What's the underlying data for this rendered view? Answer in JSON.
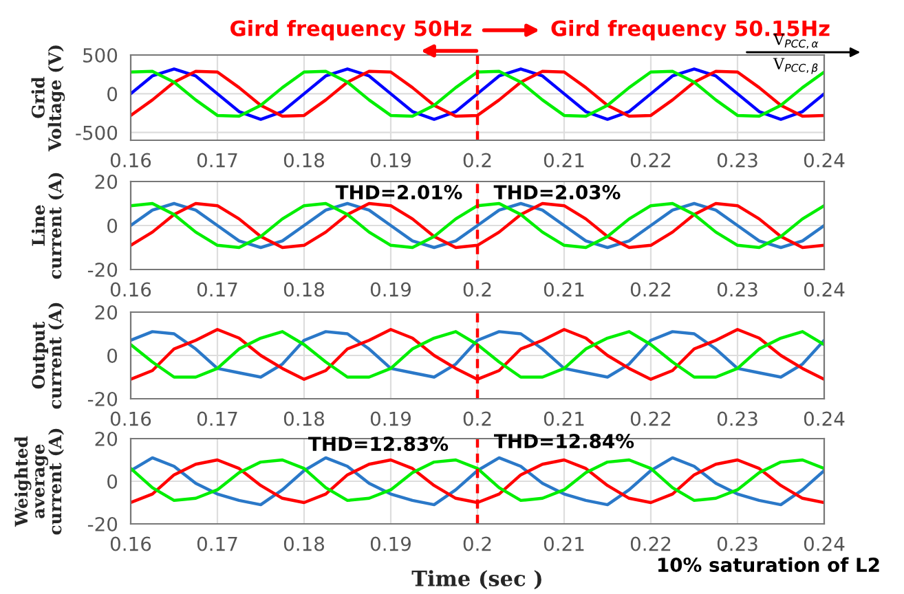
{
  "chart_data": [
    {
      "type": "line",
      "ylabel": "Grid\nVoltage (V)",
      "xlim": [
        0.16,
        0.24
      ],
      "xticks": [
        0.16,
        0.17,
        0.18,
        0.19,
        0.2,
        0.21,
        0.22,
        0.23,
        0.24
      ],
      "ylim": [
        -600,
        500
      ],
      "yticks": [
        -500,
        0,
        500
      ],
      "grid": true,
      "x": [
        0.16,
        0.1625,
        0.165,
        0.1675,
        0.17,
        0.1725,
        0.175,
        0.1775,
        0.18,
        0.1825,
        0.185,
        0.1875,
        0.19,
        0.1925,
        0.195,
        0.1975,
        0.2,
        0.2025,
        0.205,
        0.2075,
        0.21,
        0.2125,
        0.215,
        0.2175,
        0.22,
        0.2225,
        0.225,
        0.2275,
        0.23,
        0.2325,
        0.235,
        0.2375,
        0.24
      ],
      "series": [
        {
          "color": "#0000ff",
          "values": [
            0,
            230,
            320,
            230,
            0,
            -230,
            -330,
            -230,
            0,
            230,
            320,
            230,
            0,
            -230,
            -330,
            -230,
            0,
            230,
            320,
            230,
            0,
            -230,
            -330,
            -230,
            0,
            230,
            320,
            230,
            0,
            -230,
            -330,
            -230,
            0
          ]
        },
        {
          "color": "#ff0000",
          "values": [
            -280,
            -80,
            150,
            290,
            280,
            80,
            -150,
            -290,
            -280,
            -80,
            150,
            290,
            280,
            80,
            -150,
            -290,
            -280,
            -80,
            150,
            290,
            280,
            80,
            -150,
            -290,
            -280,
            -80,
            150,
            290,
            280,
            80,
            -150,
            -290,
            -280
          ]
        },
        {
          "color": "#00ee00",
          "values": [
            280,
            290,
            150,
            -80,
            -280,
            -290,
            -150,
            80,
            280,
            290,
            150,
            -80,
            -280,
            -290,
            -150,
            80,
            280,
            290,
            150,
            -80,
            -280,
            -290,
            -150,
            80,
            280,
            290,
            150,
            -80,
            -280,
            -290,
            -150,
            80,
            280
          ]
        }
      ],
      "ref_lines": [
        {
          "axis": "x",
          "value": 0.2,
          "color": "#ff0000",
          "line_style": "dashed"
        }
      ],
      "annotations": [
        "Gird frequency 50Hz",
        "Gird frequency 50.15Hz",
        "V$_{PCC,α}$",
        "V$_{PCC,β}$"
      ]
    },
    {
      "type": "line",
      "ylabel": "Line\ncurrent (A)",
      "xlim": [
        0.16,
        0.24
      ],
      "xticks": [
        0.16,
        0.17,
        0.18,
        0.19,
        0.2,
        0.21,
        0.22,
        0.23,
        0.24
      ],
      "ylim": [
        -20,
        20
      ],
      "yticks": [
        -20,
        0,
        20
      ],
      "grid": true,
      "x": [
        0.16,
        0.1625,
        0.165,
        0.1675,
        0.17,
        0.1725,
        0.175,
        0.1775,
        0.18,
        0.1825,
        0.185,
        0.1875,
        0.19,
        0.1925,
        0.195,
        0.1975,
        0.2,
        0.2025,
        0.205,
        0.2075,
        0.21,
        0.2125,
        0.215,
        0.2175,
        0.22,
        0.2225,
        0.225,
        0.2275,
        0.23,
        0.2325,
        0.235,
        0.2375,
        0.24
      ],
      "series": [
        {
          "color": "#2a78c8",
          "values": [
            0,
            7,
            10,
            7,
            0,
            -7,
            -10,
            -7,
            0,
            7,
            10,
            7,
            0,
            -7,
            -10,
            -7,
            0,
            7,
            10,
            7,
            0,
            -7,
            -10,
            -7,
            0,
            7,
            10,
            7,
            0,
            -7,
            -10,
            -7,
            0
          ]
        },
        {
          "color": "#ff0000",
          "values": [
            -9,
            -3,
            5,
            10,
            9,
            3,
            -5,
            -10,
            -9,
            -3,
            5,
            10,
            9,
            3,
            -5,
            -10,
            -9,
            -3,
            5,
            10,
            9,
            3,
            -5,
            -10,
            -9,
            -3,
            5,
            10,
            9,
            3,
            -5,
            -10,
            -9
          ]
        },
        {
          "color": "#00ee00",
          "values": [
            9,
            10,
            5,
            -3,
            -9,
            -10,
            -5,
            3,
            9,
            10,
            5,
            -3,
            -9,
            -10,
            -5,
            3,
            9,
            10,
            5,
            -3,
            -9,
            -10,
            -5,
            3,
            9,
            10,
            5,
            -3,
            -9,
            -10,
            -5,
            3,
            9
          ]
        }
      ],
      "ref_lines": [
        {
          "axis": "x",
          "value": 0.2,
          "color": "#ff0000",
          "line_style": "dashed"
        }
      ],
      "annotations": [
        "THD=2.01%",
        "THD=2.03%"
      ]
    },
    {
      "type": "line",
      "ylabel": "Output\ncurrent (A)",
      "xlim": [
        0.16,
        0.24
      ],
      "xticks": [
        0.16,
        0.17,
        0.18,
        0.19,
        0.2,
        0.21,
        0.22,
        0.23,
        0.24
      ],
      "ylim": [
        -20,
        20
      ],
      "yticks": [
        -20,
        0,
        20
      ],
      "grid": true,
      "x": [
        0.16,
        0.1625,
        0.165,
        0.1675,
        0.17,
        0.1725,
        0.175,
        0.1775,
        0.18,
        0.1825,
        0.185,
        0.1875,
        0.19,
        0.1925,
        0.195,
        0.1975,
        0.2,
        0.2025,
        0.205,
        0.2075,
        0.21,
        0.2125,
        0.215,
        0.2175,
        0.22,
        0.2225,
        0.225,
        0.2275,
        0.23,
        0.2325,
        0.235,
        0.2375,
        0.24
      ],
      "series": [
        {
          "color": "#2a78c8",
          "values": [
            7,
            11,
            10,
            3,
            -6,
            -8,
            -10,
            -4,
            7,
            11,
            10,
            3,
            -6,
            -8,
            -10,
            -4,
            7,
            11,
            10,
            3,
            -6,
            -8,
            -10,
            -4,
            7,
            11,
            10,
            3,
            -6,
            -8,
            -10,
            -4,
            7
          ]
        },
        {
          "color": "#ff0000",
          "values": [
            -11,
            -7,
            3,
            7,
            12,
            8,
            0,
            -6,
            -11,
            -7,
            3,
            7,
            12,
            8,
            0,
            -6,
            -11,
            -7,
            3,
            7,
            12,
            8,
            0,
            -6,
            -11,
            -7,
            3,
            7,
            12,
            8,
            0,
            -6,
            -11
          ]
        },
        {
          "color": "#00ee00",
          "values": [
            5,
            -3,
            -10,
            -10,
            -6,
            3,
            8,
            11,
            5,
            -3,
            -10,
            -10,
            -6,
            3,
            8,
            11,
            5,
            -3,
            -10,
            -10,
            -6,
            3,
            8,
            11,
            5,
            -3,
            -10,
            -10,
            -6,
            3,
            8,
            11,
            5
          ]
        }
      ],
      "ref_lines": [
        {
          "axis": "x",
          "value": 0.2,
          "color": "#ff0000",
          "line_style": "dashed"
        }
      ]
    },
    {
      "type": "line",
      "ylabel": "Weighted\naverage\ncurrent (A)",
      "xlabel": "Time (sec )",
      "xlim": [
        0.16,
        0.24
      ],
      "xticks": [
        0.16,
        0.17,
        0.18,
        0.19,
        0.2,
        0.21,
        0.22,
        0.23,
        0.24
      ],
      "ylim": [
        -20,
        20
      ],
      "yticks": [
        -20,
        0,
        20
      ],
      "grid": true,
      "x": [
        0.16,
        0.1625,
        0.165,
        0.1675,
        0.17,
        0.1725,
        0.175,
        0.1775,
        0.18,
        0.1825,
        0.185,
        0.1875,
        0.19,
        0.1925,
        0.195,
        0.1975,
        0.2,
        0.2025,
        0.205,
        0.2075,
        0.21,
        0.2125,
        0.215,
        0.2175,
        0.22,
        0.2225,
        0.225,
        0.2275,
        0.23,
        0.2325,
        0.235,
        0.2375,
        0.24
      ],
      "series": [
        {
          "color": "#2a78c8",
          "values": [
            5,
            11,
            7,
            -1,
            -6,
            -9,
            -11,
            -4,
            5,
            11,
            7,
            -1,
            -6,
            -9,
            -11,
            -4,
            5,
            11,
            7,
            -1,
            -6,
            -9,
            -11,
            -4,
            5,
            11,
            7,
            -1,
            -6,
            -9,
            -11,
            -4,
            5
          ]
        },
        {
          "color": "#ff0000",
          "values": [
            -10,
            -6,
            3,
            8,
            10,
            6,
            -2,
            -8,
            -10,
            -6,
            3,
            8,
            10,
            6,
            -2,
            -8,
            -10,
            -6,
            3,
            8,
            10,
            6,
            -2,
            -8,
            -10,
            -6,
            3,
            8,
            10,
            6,
            -2,
            -8,
            -10
          ]
        },
        {
          "color": "#00ee00",
          "values": [
            6,
            -3,
            -9,
            -8,
            -4,
            4,
            9,
            10,
            6,
            -3,
            -9,
            -8,
            -4,
            4,
            9,
            10,
            6,
            -3,
            -9,
            -8,
            -4,
            4,
            9,
            10,
            6,
            -3,
            -9,
            -8,
            -4,
            4,
            9,
            10,
            6
          ]
        }
      ],
      "ref_lines": [
        {
          "axis": "x",
          "value": 0.2,
          "color": "#ff0000",
          "line_style": "dashed"
        }
      ],
      "annotations": [
        "THD=12.83%",
        "THD=12.84%",
        "10% saturation of L2"
      ]
    }
  ]
}
